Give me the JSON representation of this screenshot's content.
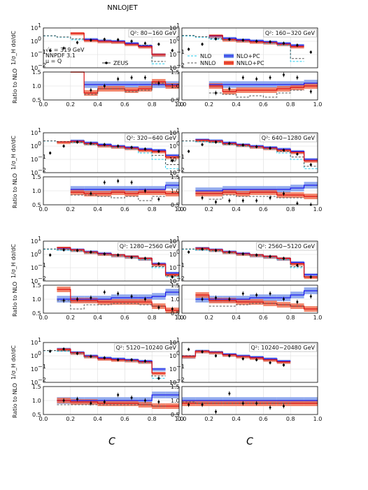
{
  "figure": {
    "title": "NNLOJET",
    "xlabel": "C",
    "ylabel_top": "1/σ_H dσ/dC",
    "ylabel_ratio": "Ratio to NLO",
    "info_lines": [
      "√s = 319 GeV",
      "NNPDF 3.1",
      "μ = Q"
    ],
    "legend": {
      "data": "ZEUS",
      "nlo": "NLO",
      "nnlo": "NNLO",
      "nlo_pc": "NLO+PC",
      "nnlo_pc": "NNLO+PC"
    }
  },
  "colors": {
    "nlo": "#22ccee",
    "nnlo": "#555555",
    "nlo_pc": "#1a1aee",
    "nlo_pc_band": "#6f8fe8",
    "nnlo_pc": "#dd1111",
    "nnlo_pc_band": "#f06a4a",
    "data": "#000000"
  },
  "chart_data": [
    {
      "type": "area",
      "q2_label": "Q²: 80−160 GeV",
      "bin_edges": [
        0,
        0.1,
        0.2,
        0.3,
        0.4,
        0.5,
        0.6,
        0.7,
        0.8,
        0.9,
        1.0
      ],
      "xlim": [
        0,
        1
      ],
      "ylim_top": [
        0.01,
        10
      ],
      "ylim_ratio": [
        0.5,
        1.5
      ],
      "nlo": [
        2.5,
        2.0,
        1.3,
        1.3,
        1.0,
        0.9,
        0.6,
        0.4,
        0.02,
        null
      ],
      "nnlo": [
        2.6,
        2.1,
        1.5,
        1.4,
        1.1,
        0.95,
        0.7,
        0.5,
        0.03,
        null
      ],
      "nlo_pc": [
        null,
        null,
        null,
        1.4,
        1.1,
        1.0,
        0.7,
        0.45,
        0.1,
        null
      ],
      "nnlo_pc": [
        null,
        null,
        4.0,
        1.2,
        1.0,
        0.9,
        0.6,
        0.4,
        0.1,
        null
      ],
      "data_x": [
        0.05,
        0.15,
        0.25,
        0.35,
        0.45,
        0.55,
        0.65,
        0.75,
        0.85,
        0.95
      ],
      "data_y": [
        0.2,
        0.3,
        0.8,
        1.2,
        1.4,
        1.3,
        1.0,
        0.7,
        0.6,
        0.2
      ],
      "ratio_nlo_pc": [
        null,
        null,
        null,
        1.05,
        1.05,
        1.05,
        1.05,
        1.05,
        1.05,
        1.05
      ],
      "ratio_nnlo_pc": [
        null,
        null,
        2.5,
        0.75,
        0.9,
        0.9,
        0.85,
        0.9,
        1.15,
        1.0
      ],
      "ratio_nnlo": [
        null,
        null,
        null,
        0.7,
        0.9,
        0.9,
        0.8,
        0.85,
        1.1,
        null
      ],
      "ratio_data": [
        null,
        null,
        null,
        0.85,
        1.0,
        1.25,
        1.3,
        1.3,
        1.1,
        null
      ]
    },
    {
      "type": "area",
      "q2_label": "Q²: 160−320 GeV",
      "bin_edges": [
        0,
        0.1,
        0.2,
        0.3,
        0.4,
        0.5,
        0.6,
        0.7,
        0.8,
        0.9,
        1.0
      ],
      "xlim": [
        0,
        1
      ],
      "ylim_top": [
        0.01,
        10
      ],
      "ylim_ratio": [
        0.5,
        1.5
      ],
      "nlo": [
        2.5,
        2.0,
        1.4,
        1.2,
        1.0,
        0.9,
        0.7,
        0.5,
        0.03,
        null
      ],
      "nnlo": [
        2.7,
        2.2,
        1.6,
        1.4,
        1.1,
        1.0,
        0.8,
        0.6,
        0.05,
        null
      ],
      "nlo_pc": [
        null,
        null,
        2.5,
        1.7,
        1.3,
        1.1,
        0.9,
        0.7,
        0.5,
        null
      ],
      "nnlo_pc": [
        null,
        null,
        2.7,
        1.3,
        1.1,
        0.9,
        0.8,
        0.6,
        0.4,
        null
      ],
      "data_x": [
        0.05,
        0.15,
        0.25,
        0.35,
        0.45,
        0.55,
        0.65,
        0.75,
        0.85,
        0.95
      ],
      "data_y": [
        0.25,
        0.6,
        1.5,
        1.4,
        1.2,
        1.0,
        0.9,
        0.7,
        0.5,
        0.15
      ],
      "ratio_nlo_pc": [
        null,
        null,
        1.05,
        1.05,
        1.05,
        1.05,
        1.05,
        1.05,
        1.05,
        1.1
      ],
      "ratio_nnlo_pc": [
        null,
        null,
        1.0,
        0.8,
        0.85,
        0.85,
        0.85,
        0.9,
        0.95,
        1.0
      ],
      "ratio_nnlo": [
        null,
        null,
        0.75,
        0.7,
        0.6,
        0.65,
        0.6,
        0.75,
        0.85,
        null
      ],
      "ratio_data": [
        null,
        null,
        0.75,
        0.9,
        1.3,
        1.25,
        1.3,
        1.4,
        1.3,
        0.8
      ]
    },
    {
      "type": "area",
      "q2_label": "Q²: 320−640 GeV",
      "bin_edges": [
        0,
        0.1,
        0.2,
        0.3,
        0.4,
        0.5,
        0.6,
        0.7,
        0.8,
        0.9,
        1.0
      ],
      "xlim": [
        0,
        1
      ],
      "ylim_top": [
        0.01,
        10
      ],
      "ylim_ratio": [
        0.5,
        1.5
      ],
      "nlo": [
        2.4,
        2.0,
        1.8,
        1.3,
        1.0,
        0.8,
        0.6,
        0.3,
        0.1,
        0.02
      ],
      "nnlo": [
        2.5,
        2.2,
        2.0,
        1.4,
        1.1,
        0.9,
        0.7,
        0.5,
        0.2,
        0.04
      ],
      "nlo_pc": [
        null,
        null,
        2.5,
        1.8,
        1.3,
        1.0,
        0.8,
        0.6,
        0.5,
        0.2
      ],
      "nnlo_pc": [
        null,
        2.0,
        2.3,
        1.6,
        1.1,
        0.9,
        0.7,
        0.5,
        0.4,
        0.15
      ],
      "data_x": [
        0.05,
        0.15,
        0.25,
        0.35,
        0.45,
        0.55,
        0.65,
        0.75,
        0.85,
        0.95
      ],
      "data_y": [
        0.3,
        1.0,
        2.0,
        1.6,
        1.3,
        1.0,
        0.8,
        0.6,
        0.4,
        0.08
      ],
      "ratio_nlo_pc": [
        null,
        null,
        1.05,
        1.05,
        1.05,
        1.05,
        1.05,
        1.05,
        1.05,
        1.2
      ],
      "ratio_nnlo_pc": [
        null,
        null,
        0.95,
        0.9,
        0.9,
        0.95,
        0.9,
        0.95,
        0.95,
        0.9
      ],
      "ratio_nnlo": [
        null,
        null,
        0.85,
        0.85,
        0.8,
        0.75,
        0.8,
        0.65,
        0.8,
        null
      ],
      "ratio_data": [
        null,
        null,
        null,
        0.9,
        1.3,
        1.35,
        1.3,
        1.0,
        0.7,
        null
      ]
    },
    {
      "type": "area",
      "q2_label": "Q²: 640−1280 GeV",
      "bin_edges": [
        0,
        0.1,
        0.2,
        0.3,
        0.4,
        0.5,
        0.6,
        0.7,
        0.8,
        0.9,
        1.0
      ],
      "xlim": [
        0,
        1
      ],
      "ylim_top": [
        0.01,
        10
      ],
      "ylim_ratio": [
        0.5,
        1.5
      ],
      "nlo": [
        2.4,
        2.1,
        1.8,
        1.3,
        1.0,
        0.8,
        0.6,
        0.3,
        0.1,
        0.02
      ],
      "nnlo": [
        2.5,
        2.3,
        2.0,
        1.4,
        1.1,
        0.9,
        0.7,
        0.4,
        0.15,
        0.03
      ],
      "nlo_pc": [
        null,
        3.0,
        2.6,
        1.8,
        1.3,
        1.0,
        0.8,
        0.6,
        0.4,
        0.1
      ],
      "nnlo_pc": [
        null,
        2.8,
        2.4,
        1.6,
        1.2,
        0.9,
        0.7,
        0.5,
        0.35,
        0.08
      ],
      "data_x": [
        0.05,
        0.15,
        0.25,
        0.35,
        0.45,
        0.55,
        0.65,
        0.75,
        0.85,
        0.95
      ],
      "data_y": [
        0.4,
        1.3,
        2.0,
        1.6,
        1.2,
        0.9,
        0.7,
        0.5,
        0.25,
        0.04
      ],
      "ratio_nlo_pc": [
        null,
        1.0,
        1.0,
        1.05,
        1.05,
        1.05,
        1.05,
        1.05,
        1.1,
        1.2
      ],
      "ratio_nnlo_pc": [
        null,
        0.9,
        0.9,
        0.95,
        0.9,
        0.95,
        0.95,
        0.85,
        0.85,
        0.8
      ],
      "ratio_nnlo": [
        null,
        null,
        0.7,
        0.85,
        0.8,
        0.8,
        0.8,
        0.75,
        0.75,
        null
      ],
      "ratio_data": [
        null,
        0.75,
        0.6,
        0.65,
        0.65,
        0.65,
        0.75,
        0.9,
        0.55,
        0.5
      ]
    },
    {
      "type": "area",
      "q2_label": "Q²: 1280−2560 GeV",
      "bin_edges": [
        0,
        0.1,
        0.2,
        0.3,
        0.4,
        0.5,
        0.6,
        0.7,
        0.8,
        0.9,
        1.0
      ],
      "xlim": [
        0,
        1
      ],
      "ylim_top": [
        0.01,
        10
      ],
      "ylim_ratio": [
        0.5,
        1.5
      ],
      "nlo": [
        2.4,
        2.1,
        1.8,
        1.3,
        1.0,
        0.8,
        0.6,
        0.4,
        0.1,
        0.02
      ],
      "nnlo": [
        2.6,
        2.3,
        2.0,
        1.4,
        1.1,
        0.9,
        0.7,
        0.5,
        0.12,
        0.025
      ],
      "nlo_pc": [
        null,
        3.0,
        2.3,
        1.6,
        1.2,
        0.9,
        0.7,
        0.5,
        0.2,
        0.04
      ],
      "nnlo_pc": [
        null,
        3.2,
        2.2,
        1.5,
        1.1,
        0.9,
        0.7,
        0.5,
        0.18,
        0.03
      ],
      "data_x": [
        0.05,
        0.15,
        0.25,
        0.35,
        0.45,
        0.55,
        0.65,
        0.75,
        0.85,
        0.95
      ],
      "data_y": [
        0.9,
        2.2,
        2.0,
        1.5,
        1.1,
        0.9,
        0.6,
        0.5,
        0.2,
        0.02
      ],
      "ratio_nlo_pc": [
        null,
        1.0,
        1.0,
        1.0,
        1.0,
        1.05,
        1.05,
        1.05,
        1.1,
        1.25
      ],
      "ratio_nnlo_pc": [
        null,
        1.35,
        0.95,
        0.95,
        0.9,
        0.9,
        0.9,
        0.9,
        0.75,
        0.6
      ],
      "ratio_nnlo": [
        null,
        0.95,
        0.65,
        0.8,
        0.8,
        0.85,
        0.85,
        0.8,
        0.75,
        null
      ],
      "ratio_data": [
        null,
        0.95,
        1.0,
        1.05,
        1.25,
        1.2,
        1.1,
        1.0,
        0.7,
        0.65
      ]
    },
    {
      "type": "area",
      "q2_label": "Q²: 2560−5120 GeV",
      "bin_edges": [
        0,
        0.1,
        0.2,
        0.3,
        0.4,
        0.5,
        0.6,
        0.7,
        0.8,
        0.9,
        1.0
      ],
      "xlim": [
        0,
        1
      ],
      "ylim_top": [
        0.01,
        10
      ],
      "ylim_ratio": [
        0.5,
        1.5
      ],
      "nlo": [
        2.4,
        2.1,
        1.8,
        1.3,
        1.0,
        0.8,
        0.6,
        0.4,
        0.1,
        0.02
      ],
      "nnlo": [
        2.6,
        2.3,
        2.0,
        1.4,
        1.1,
        0.9,
        0.7,
        0.5,
        0.12,
        0.02
      ],
      "nlo_pc": [
        null,
        3.0,
        2.3,
        1.6,
        1.2,
        0.9,
        0.7,
        0.5,
        0.25,
        0.03
      ],
      "nnlo_pc": [
        null,
        2.9,
        2.2,
        1.5,
        1.1,
        0.9,
        0.7,
        0.5,
        0.2,
        0.02
      ],
      "data_x": [
        0.05,
        0.15,
        0.25,
        0.35,
        0.45,
        0.55,
        0.65,
        0.75,
        0.85,
        0.95
      ],
      "data_y": [
        1.5,
        2.5,
        2.0,
        1.5,
        1.1,
        0.9,
        0.7,
        0.5,
        0.15,
        0.02
      ],
      "ratio_nlo_pc": [
        null,
        1.0,
        1.0,
        1.0,
        1.0,
        1.05,
        1.05,
        1.05,
        1.15,
        1.3
      ],
      "ratio_nnlo_pc": [
        null,
        1.15,
        0.95,
        0.95,
        0.9,
        0.9,
        0.85,
        0.8,
        0.75,
        0.65
      ],
      "ratio_nnlo": [
        null,
        null,
        0.75,
        0.75,
        0.8,
        0.85,
        0.85,
        0.8,
        0.75,
        null
      ],
      "ratio_data": [
        null,
        1.0,
        1.05,
        1.0,
        1.2,
        1.15,
        1.2,
        1.0,
        0.9,
        1.1
      ]
    },
    {
      "type": "area",
      "q2_label": "Q²: 5120−10240 GeV",
      "bin_edges": [
        0,
        0.1,
        0.2,
        0.3,
        0.4,
        0.5,
        0.6,
        0.7,
        0.8,
        0.9,
        1.0
      ],
      "xlim": [
        0,
        1
      ],
      "ylim_top": [
        0.01,
        10
      ],
      "ylim_ratio": [
        0.5,
        1.5
      ],
      "nlo": [
        2.4,
        2.2,
        1.5,
        0.8,
        0.6,
        0.5,
        0.4,
        0.3,
        0.02,
        null
      ],
      "nnlo": [
        2.5,
        2.4,
        1.6,
        0.9,
        0.7,
        0.6,
        0.5,
        0.35,
        0.03,
        null
      ],
      "nlo_pc": [
        null,
        3.2,
        1.8,
        1.0,
        0.7,
        0.6,
        0.5,
        0.4,
        0.1,
        null
      ],
      "nnlo_pc": [
        null,
        3.1,
        1.7,
        0.9,
        0.6,
        0.5,
        0.45,
        0.35,
        0.05,
        null
      ],
      "data_x": [
        0.05,
        0.15,
        0.25,
        0.35,
        0.45,
        0.55,
        0.65,
        0.75,
        0.85
      ],
      "data_y": [
        2.2,
        3.2,
        1.5,
        0.9,
        0.7,
        0.5,
        0.5,
        0.4,
        0.02
      ],
      "ratio_nlo_pc": [
        null,
        1.0,
        1.0,
        1.0,
        1.0,
        1.0,
        1.0,
        1.0,
        1.2,
        1.2
      ],
      "ratio_nnlo_pc": [
        null,
        1.0,
        0.95,
        0.95,
        0.9,
        0.9,
        0.9,
        0.85,
        0.8,
        0.8
      ],
      "ratio_nnlo": [
        null,
        0.85,
        0.85,
        0.85,
        0.85,
        0.85,
        0.85,
        0.85,
        0.8,
        null
      ],
      "ratio_data": [
        null,
        1.0,
        1.05,
        0.9,
        0.95,
        1.2,
        1.1,
        1.0,
        0.95,
        null
      ]
    },
    {
      "type": "area",
      "q2_label": "Q²: 10240−20480 GeV",
      "bin_edges": [
        0,
        0.1,
        0.2,
        0.3,
        0.4,
        0.5,
        0.6,
        0.7,
        0.8,
        0.9,
        1.0
      ],
      "xlim": [
        0,
        1
      ],
      "ylim_top": [
        0.01,
        10
      ],
      "ylim_ratio": [
        0.5,
        1.5
      ],
      "nlo": [
        1.0,
        2.2,
        1.8,
        1.2,
        0.9,
        0.7,
        0.5,
        0.35,
        null,
        null
      ],
      "nnlo": [
        1.0,
        2.4,
        2.0,
        1.3,
        1.0,
        0.8,
        0.6,
        0.4,
        null,
        null
      ],
      "nlo_pc": [
        0.9,
        2.3,
        1.9,
        1.3,
        1.0,
        0.8,
        0.6,
        0.4,
        null,
        null
      ],
      "nnlo_pc": [
        0.9,
        2.2,
        1.8,
        1.2,
        0.9,
        0.7,
        0.5,
        0.35,
        null,
        null
      ],
      "data_x": [
        0.05,
        0.15,
        0.25,
        0.35,
        0.45,
        0.55,
        0.65,
        0.75
      ],
      "data_y": [
        3.0,
        2.0,
        1.0,
        1.0,
        0.6,
        0.5,
        0.3,
        0.2
      ],
      "ratio_nlo_pc": [
        1.0,
        1.0,
        1.0,
        1.0,
        1.0,
        1.0,
        1.0,
        1.0,
        1.0,
        1.0
      ],
      "ratio_nnlo_pc": [
        0.9,
        0.9,
        0.9,
        0.9,
        0.9,
        0.9,
        0.9,
        0.9,
        0.9,
        0.9
      ],
      "ratio_nnlo": [
        0.95,
        0.9,
        0.9,
        0.9,
        0.9,
        0.9,
        0.9,
        0.9,
        null,
        null
      ],
      "ratio_data": [
        0.85,
        0.85,
        0.6,
        1.25,
        0.9,
        0.9,
        0.75,
        0.8,
        null,
        null
      ]
    }
  ]
}
